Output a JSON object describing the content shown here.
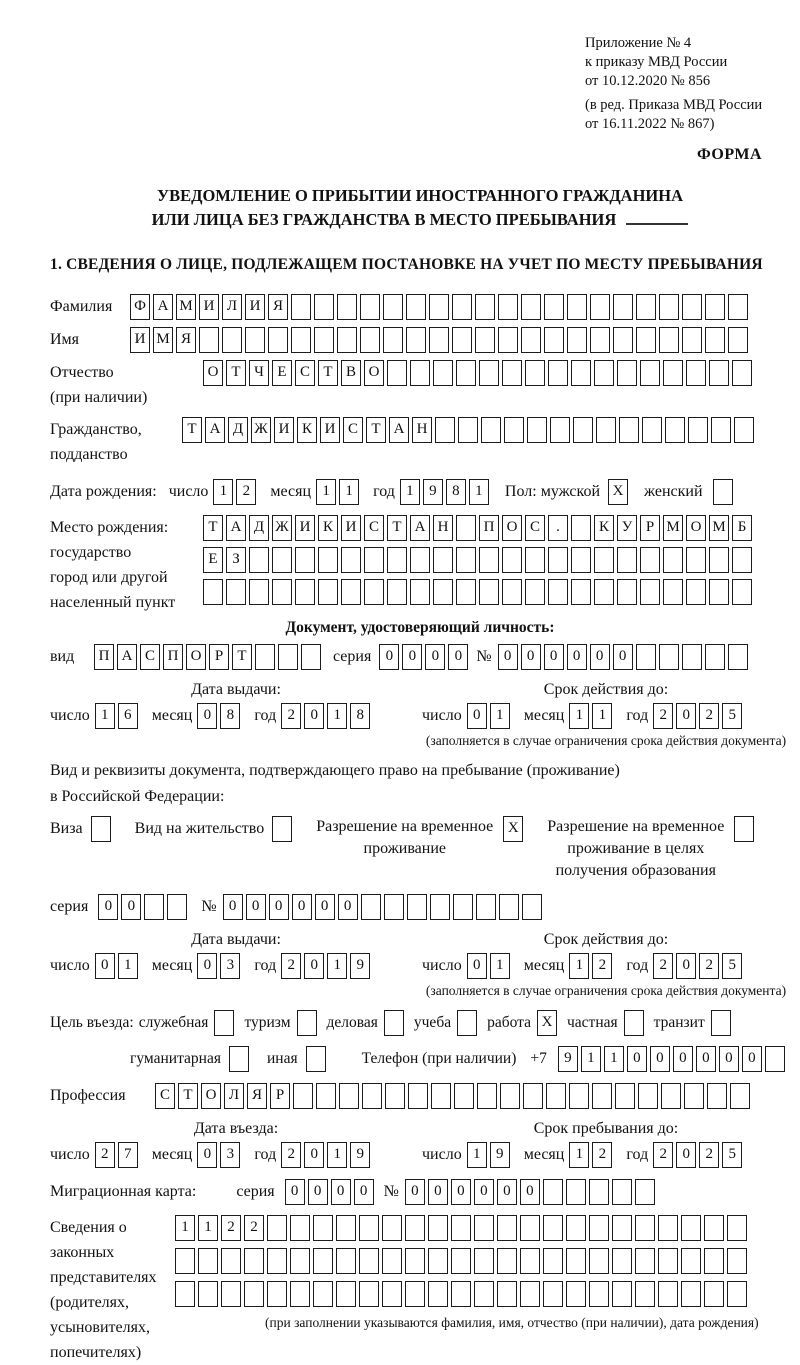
{
  "meta": {
    "annotation": [
      "Приложение № 4",
      "к приказу МВД России",
      "от 10.12.2020 № 856",
      "(в ред. Приказа МВД России",
      "от 16.11.2022 № 867)"
    ],
    "form_label": "ФОРМА"
  },
  "title": {
    "line1": "УВЕДОМЛЕНИЕ О ПРИБЫТИИ ИНОСТРАННОГО ГРАЖДАНИНА",
    "line2": "ИЛИ ЛИЦА БЕЗ ГРАЖДАНСТВА В МЕСТО ПРЕБЫВАНИЯ"
  },
  "section1": {
    "heading": "1. СВЕДЕНИЯ О ЛИЦЕ, ПОДЛЕЖАЩЕМ ПОСТАНОВКЕ НА УЧЕТ ПО МЕСТУ ПРЕБЫВАНИЯ"
  },
  "labels": {
    "day": "число",
    "month": "месяц",
    "year": "год",
    "seriya": "серия",
    "number_sign": "№",
    "issue_date": "Дата выдачи:",
    "valid_until": "Срок действия до:",
    "validity_note": "(заполняется в случае ограничения срока действия документа)"
  },
  "fields": {
    "surname": {
      "label": "Фамилия",
      "boxes": {
        "value": "ФАМИЛИЯ",
        "total": 27
      }
    },
    "given_name": {
      "label": "Имя",
      "boxes": {
        "value": "ИМЯ",
        "total": 27
      }
    },
    "patronymic": {
      "label1": "Отчество",
      "label2": "(при наличии)",
      "boxes": {
        "value": "ОТЧЕСТВО",
        "total": 24
      }
    },
    "citizenship": {
      "label1": "Гражданство,",
      "label2": "подданство",
      "boxes": {
        "value": "ТАДЖИКИСТАН",
        "total": 25
      }
    },
    "birth_date": {
      "label": "Дата рождения:",
      "day": {
        "value": "12",
        "total": 2
      },
      "month": {
        "value": "11",
        "total": 2
      },
      "year": {
        "value": "1981",
        "total": 4
      }
    },
    "sex": {
      "label": "Пол: мужской",
      "male_box": {
        "value": "X",
        "total": 1
      },
      "female_label": "женский",
      "female_box": {
        "value": "",
        "total": 1
      }
    },
    "birth_place": {
      "labels": [
        "Место рождения:",
        "государство",
        "город или другой",
        "населенный пункт"
      ],
      "row1": {
        "value": "ТАДЖИКИСТАН ПОС. КУРМОМБ",
        "total": 24
      },
      "row2": {
        "value": "ЕЗ",
        "total": 24
      },
      "row3": {
        "value": "",
        "total": 24
      }
    }
  },
  "identity_doc": {
    "heading": "Документ, удостоверяющий личность:",
    "kind_label": "вид",
    "kind": {
      "value": "ПАСПОРТ",
      "total": 10
    },
    "series": {
      "value": "0000",
      "total": 4
    },
    "number": {
      "value": "000000",
      "total": 11
    },
    "issue": {
      "day": {
        "value": "16",
        "total": 2
      },
      "month": {
        "value": "08",
        "total": 2
      },
      "year": {
        "value": "2018",
        "total": 4
      }
    },
    "valid": {
      "day": {
        "value": "01",
        "total": 2
      },
      "month": {
        "value": "11",
        "total": 2
      },
      "year": {
        "value": "2025",
        "total": 4
      }
    }
  },
  "residence_doc": {
    "line1": "Вид и реквизиты документа, подтверждающего право на пребывание (проживание)",
    "line2": "в Российской Федерации:",
    "visa_label": "Виза",
    "visa_box": {
      "value": "",
      "total": 1
    },
    "permit_label": "Вид на жительство",
    "permit_box": {
      "value": "",
      "total": 1
    },
    "temp_label1": "Разрешение на временное",
    "temp_label2": "проживание",
    "temp_box": {
      "value": "X",
      "total": 1
    },
    "edu_label1": "Разрешение на временное",
    "edu_label2": "проживание в целях",
    "edu_label3": "получения образования",
    "edu_box": {
      "value": "",
      "total": 1
    },
    "series": {
      "value": "00",
      "total": 4
    },
    "number": {
      "value": "000000",
      "total": 14
    },
    "issue": {
      "day": {
        "value": "01",
        "total": 2
      },
      "month": {
        "value": "03",
        "total": 2
      },
      "year": {
        "value": "2019",
        "total": 4
      }
    },
    "valid": {
      "day": {
        "value": "01",
        "total": 2
      },
      "month": {
        "value": "12",
        "total": 2
      },
      "year": {
        "value": "2025",
        "total": 4
      }
    }
  },
  "purpose": {
    "label": "Цель въезда:",
    "options_row1": [
      {
        "label": "служебная",
        "box": {
          "value": "",
          "total": 1
        }
      },
      {
        "label": "туризм",
        "box": {
          "value": "",
          "total": 1
        }
      },
      {
        "label": "деловая",
        "box": {
          "value": "",
          "total": 1
        }
      },
      {
        "label": "учеба",
        "box": {
          "value": "",
          "total": 1
        }
      },
      {
        "label": "работа",
        "box": {
          "value": "X",
          "total": 1
        }
      },
      {
        "label": "частная",
        "box": {
          "value": "",
          "total": 1
        }
      },
      {
        "label": "транзит",
        "box": {
          "value": "",
          "total": 1
        }
      }
    ],
    "options_row2": [
      {
        "label": "гуманитарная",
        "box": {
          "value": "",
          "total": 1
        }
      },
      {
        "label": "иная",
        "box": {
          "value": "",
          "total": 1
        }
      }
    ],
    "phone_label": "Телефон (при наличии)",
    "phone_prefix": "+7",
    "phone": {
      "value": "911000000",
      "total": 10
    }
  },
  "profession": {
    "label": "Профессия",
    "boxes": {
      "value": "СТОЛЯР",
      "total": 26
    }
  },
  "entry": {
    "header": "Дата въезда:",
    "date": {
      "day": {
        "value": "27",
        "total": 2
      },
      "month": {
        "value": "03",
        "total": 2
      },
      "year": {
        "value": "2019",
        "total": 4
      }
    }
  },
  "stay": {
    "header": "Срок пребывания до:",
    "date": {
      "day": {
        "value": "19",
        "total": 2
      },
      "month": {
        "value": "12",
        "total": 2
      },
      "year": {
        "value": "2025",
        "total": 4
      }
    }
  },
  "migration_card": {
    "label": "Миграционная карта:",
    "series": {
      "value": "0000",
      "total": 4
    },
    "number": {
      "value": "000000",
      "total": 11
    }
  },
  "representatives": {
    "labels": [
      "Сведения о",
      "законных",
      "представителях",
      "(родителях,",
      "усыновителях,",
      "попечителях)"
    ],
    "row1": {
      "value": "1122",
      "total": 25
    },
    "row2": {
      "value": "",
      "total": 25
    },
    "row3": {
      "value": "",
      "total": 25
    },
    "note": "(при заполнении указываются фамилия, имя, отчество (при наличии), дата рождения)"
  }
}
